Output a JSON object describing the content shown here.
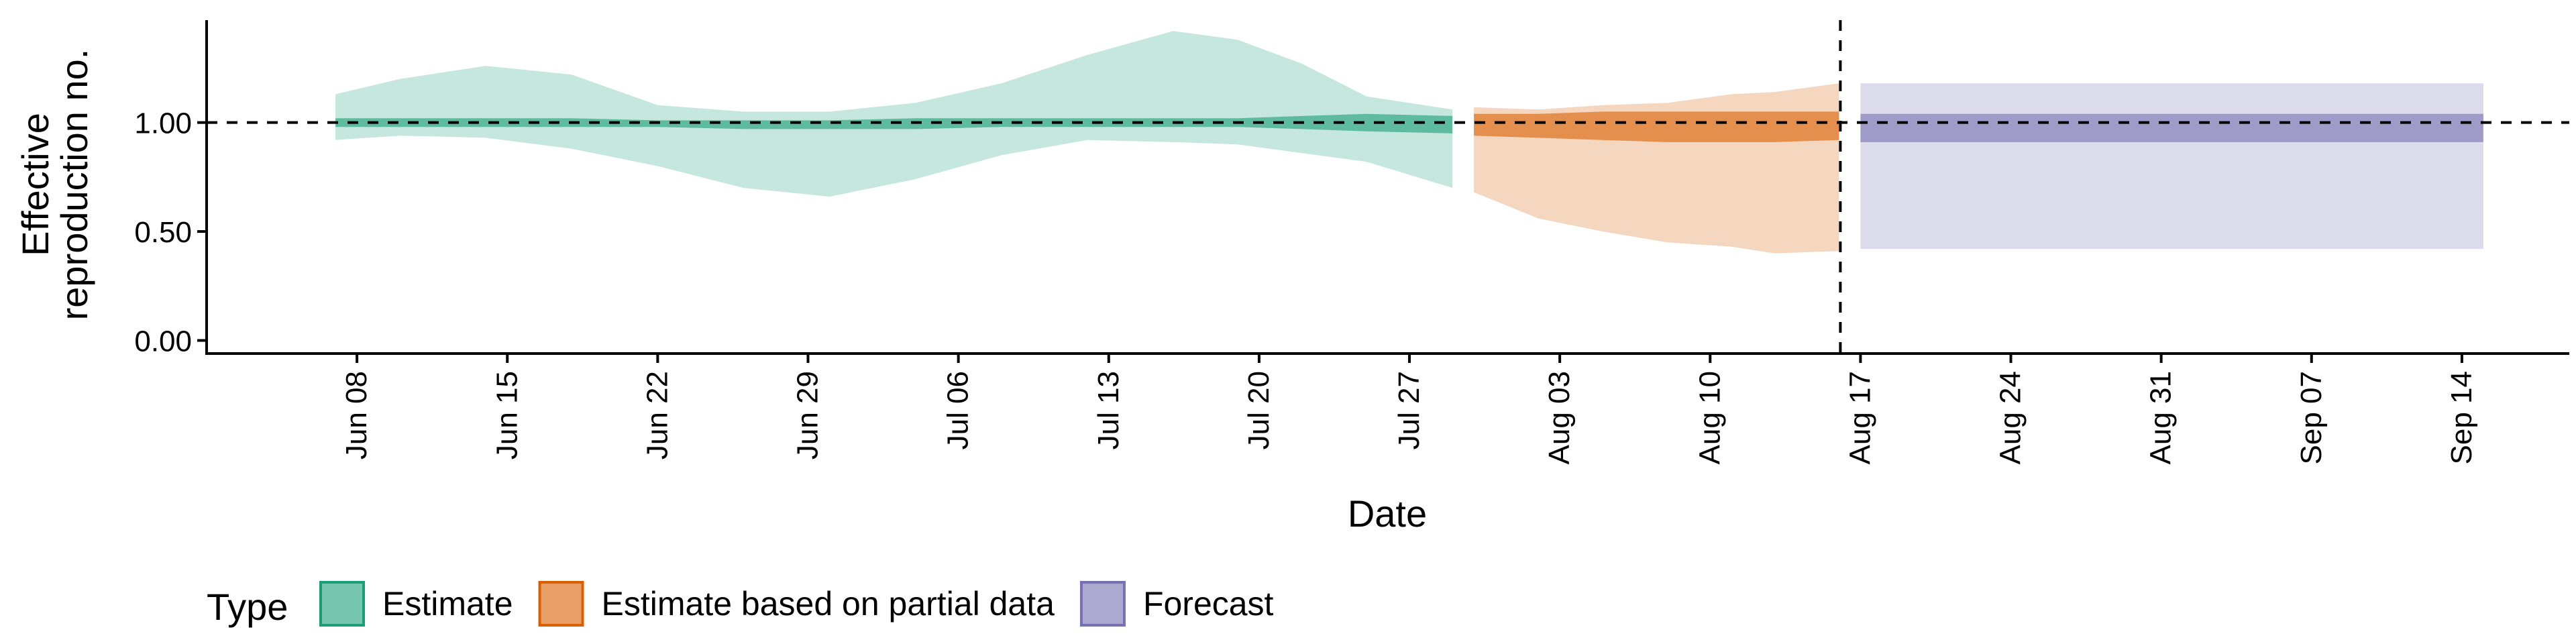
{
  "chart_data": {
    "type": "area",
    "xlabel": "Date",
    "ylabel": [
      "Effective",
      "reproduction no."
    ],
    "x_ticks": [
      "Jun 08",
      "Jun 15",
      "Jun 22",
      "Jun 29",
      "Jul 06",
      "Jul 13",
      "Jul 20",
      "Jul 27",
      "Aug 03",
      "Aug 10",
      "Aug 17",
      "Aug 24",
      "Aug 31",
      "Sep 07",
      "Sep 14"
    ],
    "y_ticks": [
      "0.00",
      "0.50",
      "1.00"
    ],
    "y_tick_values": [
      0,
      0.5,
      1.0
    ],
    "xlim": [
      "2020-06-01",
      "2020-09-19"
    ],
    "ylim": [
      -0.06,
      1.47
    ],
    "reference_line_y": 1.0,
    "vertical_line_date": "2020-08-16",
    "legend_title": "Type",
    "legend_position": "bottom",
    "series": [
      {
        "name": "Estimate",
        "color": "#1b9e77",
        "x": [
          "2020-06-07",
          "2020-06-10",
          "2020-06-14",
          "2020-06-18",
          "2020-06-22",
          "2020-06-26",
          "2020-06-30",
          "2020-07-04",
          "2020-07-08",
          "2020-07-12",
          "2020-07-16",
          "2020-07-19",
          "2020-07-22",
          "2020-07-25",
          "2020-07-29"
        ],
        "outer_lower": [
          0.92,
          0.94,
          0.93,
          0.88,
          0.8,
          0.7,
          0.66,
          0.74,
          0.85,
          0.92,
          0.91,
          0.9,
          0.86,
          0.82,
          0.7
        ],
        "outer_upper": [
          1.13,
          1.2,
          1.26,
          1.22,
          1.08,
          1.05,
          1.05,
          1.09,
          1.18,
          1.31,
          1.42,
          1.38,
          1.27,
          1.12,
          1.06
        ],
        "inner_lower": [
          0.98,
          0.98,
          0.98,
          0.98,
          0.98,
          0.97,
          0.97,
          0.97,
          0.98,
          0.98,
          0.98,
          0.98,
          0.97,
          0.96,
          0.95
        ],
        "inner_upper": [
          1.02,
          1.02,
          1.02,
          1.02,
          1.01,
          1.01,
          1.01,
          1.02,
          1.02,
          1.02,
          1.02,
          1.02,
          1.03,
          1.04,
          1.03
        ]
      },
      {
        "name": "Estimate based on partial data",
        "color": "#d95f02",
        "x": [
          "2020-07-30",
          "2020-08-02",
          "2020-08-05",
          "2020-08-08",
          "2020-08-11",
          "2020-08-13",
          "2020-08-16"
        ],
        "outer_lower": [
          0.68,
          0.56,
          0.5,
          0.45,
          0.43,
          0.4,
          0.41
        ],
        "outer_upper": [
          1.07,
          1.06,
          1.08,
          1.09,
          1.13,
          1.14,
          1.18
        ],
        "inner_lower": [
          0.94,
          0.93,
          0.92,
          0.91,
          0.91,
          0.91,
          0.92
        ],
        "inner_upper": [
          1.04,
          1.04,
          1.05,
          1.05,
          1.05,
          1.05,
          1.05
        ]
      },
      {
        "name": "Forecast",
        "color": "#7570b3",
        "x": [
          "2020-08-17",
          "2020-09-15"
        ],
        "outer_lower": [
          0.42,
          0.42
        ],
        "outer_upper": [
          1.18,
          1.18
        ],
        "inner_lower": [
          0.91,
          0.91
        ],
        "inner_upper": [
          1.04,
          1.04
        ]
      }
    ]
  }
}
